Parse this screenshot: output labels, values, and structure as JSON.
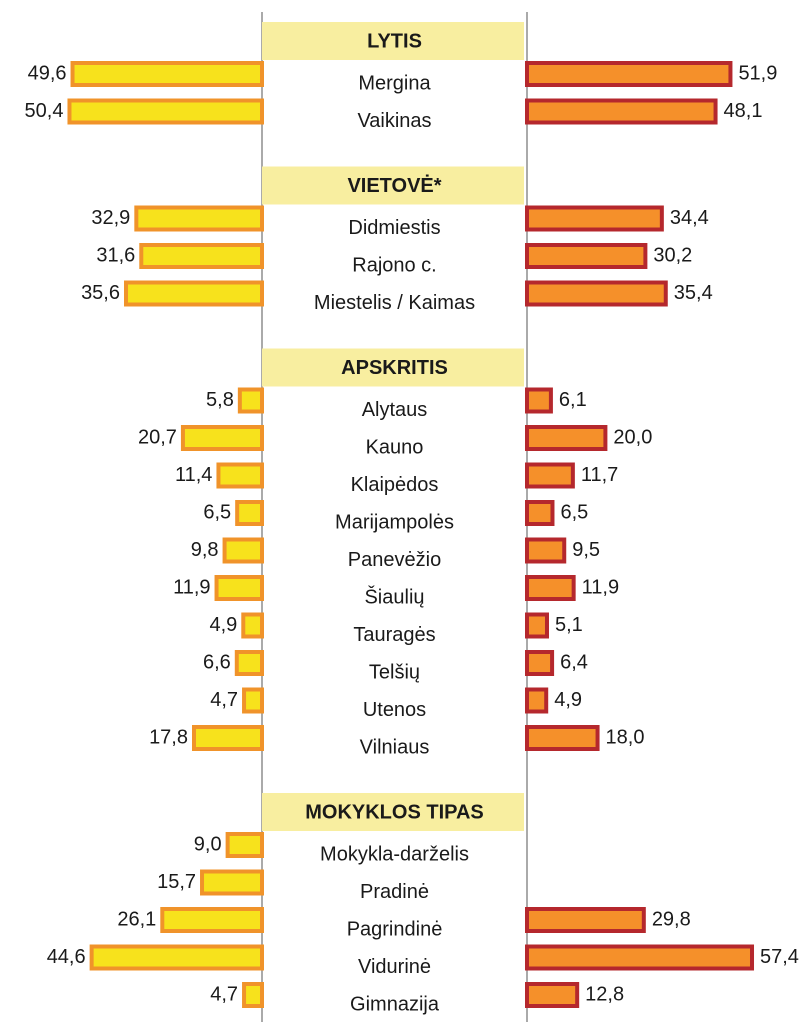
{
  "chart_data": {
    "type": "butterfly",
    "groups": [
      {
        "title": "LYTIS",
        "categories": [
          "Mergina",
          "Vaikinas"
        ],
        "series": [
          {
            "color": "#f7e21c",
            "border": "#f0932a",
            "values": [
              49.6,
              50.4
            ],
            "value_labels": [
              "49,6",
              "50,4"
            ]
          },
          {
            "color": "#f5902a",
            "border": "#b5282d",
            "values": [
              51.9,
              48.1
            ],
            "value_labels": [
              "51,9",
              "48,1"
            ]
          }
        ]
      },
      {
        "title": "VIETOVĖ*",
        "categories": [
          "Didmiestis",
          "Rajono c.",
          "Miestelis / Kaimas"
        ],
        "series": [
          {
            "color": "#f7e21c",
            "border": "#f0932a",
            "values": [
              32.9,
              31.6,
              35.6
            ],
            "value_labels": [
              "32,9",
              "31,6",
              "35,6"
            ]
          },
          {
            "color": "#f5902a",
            "border": "#b5282d",
            "values": [
              34.4,
              30.2,
              35.4
            ],
            "value_labels": [
              "34,4",
              "30,2",
              "35,4"
            ]
          }
        ]
      },
      {
        "title": "APSKRITIS",
        "categories": [
          "Alytaus",
          "Kauno",
          "Klaipėdos",
          "Marijampolės",
          "Panevėžio",
          "Šiaulių",
          "Tauragės",
          "Telšių",
          "Utenos",
          "Vilniaus"
        ],
        "series": [
          {
            "color": "#f7e21c",
            "border": "#f0932a",
            "values": [
              5.8,
              20.7,
              11.4,
              6.5,
              9.8,
              11.9,
              4.9,
              6.6,
              4.7,
              17.8
            ],
            "value_labels": [
              "5,8",
              "20,7",
              "11,4",
              "6,5",
              "9,8",
              "11,9",
              "4,9",
              "6,6",
              "4,7",
              "17,8"
            ]
          },
          {
            "color": "#f5902a",
            "border": "#b5282d",
            "values": [
              6.1,
              20.0,
              11.7,
              6.5,
              9.5,
              11.9,
              5.1,
              6.4,
              4.9,
              18.0
            ],
            "value_labels": [
              "6,1",
              "20,0",
              "11,7",
              "6,5",
              "9,5",
              "11,9",
              "5,1",
              "6,4",
              "4,9",
              "18,0"
            ]
          }
        ]
      },
      {
        "title": "MOKYKLOS TIPAS",
        "categories": [
          "Mokykla-darželis",
          "Pradinė",
          "Pagrindinė",
          "Vidurinė",
          "Gimnazija"
        ],
        "series": [
          {
            "color": "#f7e21c",
            "border": "#f0932a",
            "values": [
              9.0,
              15.7,
              26.1,
              44.6,
              4.7
            ],
            "value_labels": [
              "9,0",
              "15,7",
              "26,1",
              "44,6",
              "4,7"
            ]
          },
          {
            "color": "#f5902a",
            "border": "#b5282d",
            "values": [
              null,
              null,
              29.8,
              57.4,
              12.8
            ],
            "value_labels": [
              null,
              null,
              "29,8",
              "57,4",
              "12,8"
            ]
          }
        ]
      }
    ]
  }
}
